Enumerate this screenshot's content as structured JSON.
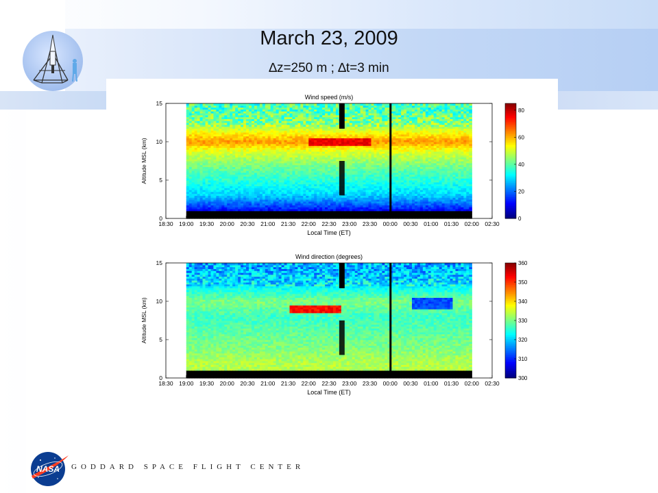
{
  "slide": {
    "title": "March 23, 2009",
    "subtitle": "∆z=250 m ; ∆t=3 min",
    "footer": "GODDARD SPACE FLIGHT CENTER",
    "logo_icon": "lidar-instrument-icon",
    "agency_icon": "nasa-meatball-icon",
    "colors": {
      "band": "#c3d8f6",
      "nasa_blue": "#0b3d91",
      "nasa_red": "#fc3d21"
    }
  },
  "chart_data": [
    {
      "type": "heatmap",
      "title": "Wind speed (m/s)",
      "xlabel": "Local Time (ET)",
      "ylabel": "Altitude MSL (km)",
      "x_ticks": [
        "18:30",
        "19:00",
        "19:30",
        "20:00",
        "20:30",
        "21:00",
        "21:30",
        "22:00",
        "22:30",
        "23:00",
        "23:30",
        "00:00",
        "00:30",
        "01:00",
        "01:30",
        "02:00",
        "02:30"
      ],
      "y_ticks": [
        "0",
        "5",
        "10",
        "15"
      ],
      "ylim": [
        0,
        15
      ],
      "colorbar": {
        "range": [
          0,
          85
        ],
        "ticks": [
          "0",
          "20",
          "40",
          "60",
          "80"
        ]
      },
      "data_window": [
        "19:00",
        "02:00"
      ],
      "profile": [
        {
          "altitude_km": 0.5,
          "value": 5
        },
        {
          "altitude_km": 1.5,
          "value": 15
        },
        {
          "altitude_km": 3,
          "value": 28
        },
        {
          "altitude_km": 5,
          "value": 35
        },
        {
          "altitude_km": 7,
          "value": 42
        },
        {
          "altitude_km": 9,
          "value": 52
        },
        {
          "altitude_km": 10,
          "value": 62
        },
        {
          "altitude_km": 11,
          "value": 55
        },
        {
          "altitude_km": 12.5,
          "value": 42
        },
        {
          "altitude_km": 14.5,
          "value": 38
        }
      ],
      "max_region": {
        "time": [
          "22:00",
          "23:30"
        ],
        "altitude_km": [
          9.5,
          10.5
        ],
        "value": 75
      },
      "gaps": [
        {
          "time": [
            "22:45",
            "22:53"
          ],
          "type": "partial"
        },
        {
          "time": [
            "23:59",
            "00:01"
          ],
          "type": "full"
        }
      ]
    },
    {
      "type": "heatmap",
      "title": "Wind direction (degrees)",
      "xlabel": "Local Time (ET)",
      "ylabel": "Altitude MSL (km)",
      "x_ticks": [
        "18:30",
        "19:00",
        "19:30",
        "20:00",
        "20:30",
        "21:00",
        "21:30",
        "22:00",
        "22:30",
        "23:00",
        "23:30",
        "00:00",
        "00:30",
        "01:00",
        "01:30",
        "02:00",
        "02:30"
      ],
      "y_ticks": [
        "0",
        "5",
        "10",
        "15"
      ],
      "ylim": [
        0,
        15
      ],
      "colorbar": {
        "range": [
          300,
          360
        ],
        "ticks": [
          "300",
          "310",
          "320",
          "330",
          "340",
          "350",
          "360"
        ]
      },
      "data_window": [
        "19:00",
        "02:00"
      ],
      "profile": [
        {
          "altitude_km": 2,
          "value": 333
        },
        {
          "altitude_km": 4,
          "value": 330
        },
        {
          "altitude_km": 6,
          "value": 328
        },
        {
          "altitude_km": 8,
          "value": 326
        },
        {
          "altitude_km": 10,
          "value": 330
        },
        {
          "altitude_km": 12,
          "value": 322
        },
        {
          "altitude_km": 14,
          "value": 318
        }
      ],
      "max_region": {
        "time": [
          "21:30",
          "22:45"
        ],
        "altitude_km": [
          8.5,
          9.5
        ],
        "value": 352
      },
      "min_region": {
        "time": [
          "00:30",
          "01:30"
        ],
        "altitude_km": [
          9,
          10.5
        ],
        "value": 312
      },
      "gaps": [
        {
          "time": [
            "22:45",
            "22:53"
          ],
          "type": "partial"
        },
        {
          "time": [
            "23:59",
            "00:01"
          ],
          "type": "full"
        }
      ]
    }
  ]
}
